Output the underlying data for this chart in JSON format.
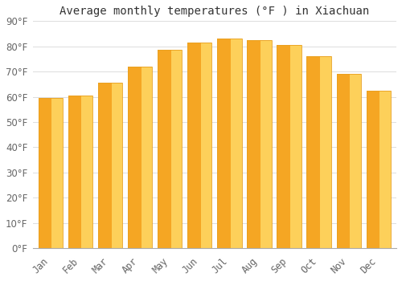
{
  "title": "Average monthly temperatures (°F ) in Xiachuan",
  "months": [
    "Jan",
    "Feb",
    "Mar",
    "Apr",
    "May",
    "Jun",
    "Jul",
    "Aug",
    "Sep",
    "Oct",
    "Nov",
    "Dec"
  ],
  "values": [
    59.5,
    60.5,
    65.5,
    72.0,
    78.5,
    81.5,
    83.0,
    82.5,
    80.5,
    76.0,
    69.0,
    62.5
  ],
  "bar_color_left": "#F5A623",
  "bar_color_right": "#FDD05A",
  "bar_edge_color": "#E8A020",
  "background_color": "#FFFFFF",
  "grid_color": "#DDDDDD",
  "ylim": [
    0,
    90
  ],
  "yticks": [
    0,
    10,
    20,
    30,
    40,
    50,
    60,
    70,
    80,
    90
  ],
  "title_fontsize": 10,
  "tick_fontsize": 8.5,
  "bar_width": 0.82
}
